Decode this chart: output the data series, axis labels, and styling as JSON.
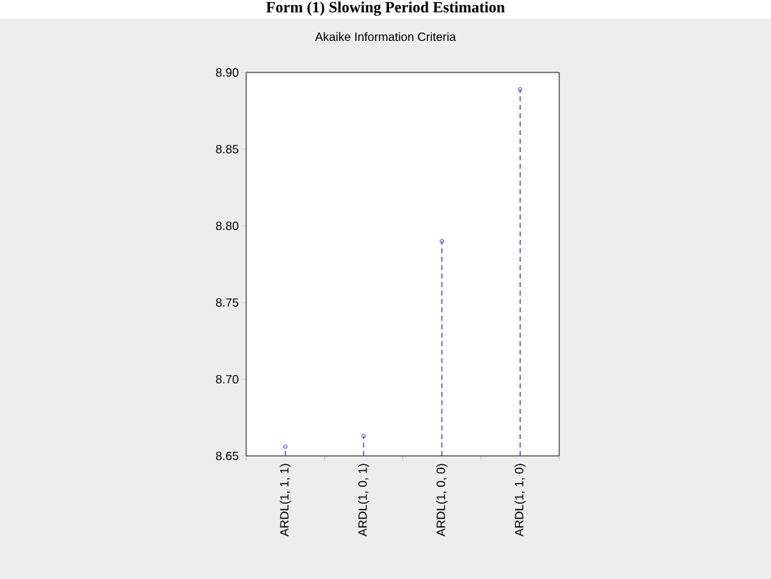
{
  "chart_data": {
    "type": "lollipop",
    "title": "Form (1) Slowing Period Estimation",
    "subtitle": "Akaike Information Criteria",
    "categories": [
      "ARDL(1, 1, 1)",
      "ARDL(1, 0, 1)",
      "ARDL(1, 0, 0)",
      "ARDL(1, 1, 0)"
    ],
    "values": [
      8.656,
      8.663,
      8.79,
      8.889
    ],
    "color": "#1a1aff",
    "ylim": [
      8.65,
      8.9
    ],
    "yticks": [
      8.65,
      {
        "value": 8.7,
        "label": "8.70"
      },
      8.75,
      {
        "value": 8.8,
        "label": "8.80"
      },
      8.85,
      {
        "value": 8.9,
        "label": "8.90"
      }
    ],
    "marker": "circle",
    "line_style": "dashed"
  }
}
